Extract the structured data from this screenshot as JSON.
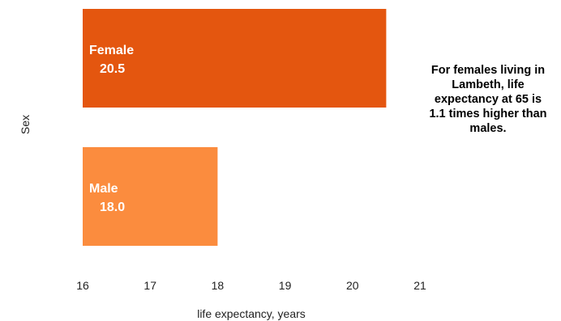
{
  "chart_data": {
    "type": "bar",
    "orientation": "horizontal",
    "categories": [
      "Female",
      "Male"
    ],
    "values": [
      20.5,
      18.0
    ],
    "value_labels": [
      "20.5",
      "18.0"
    ],
    "colors": [
      "#e4560f",
      "#fb8c3e"
    ],
    "xlabel": "life expectancy,  years",
    "ylabel": "Sex",
    "xlim": [
      16,
      21
    ],
    "xticks": [
      "16",
      "17",
      "18",
      "19",
      "20",
      "21"
    ],
    "grid": false
  },
  "annotation": "For females living in Lambeth, life expectancy at 65 is 1.1 times higher than males."
}
